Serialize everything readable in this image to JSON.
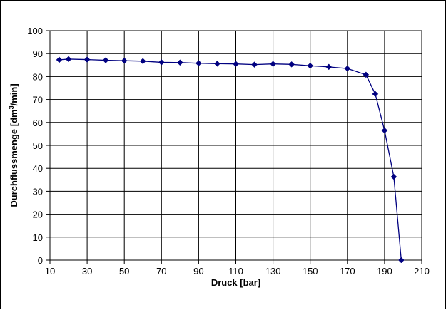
{
  "chart_data": {
    "type": "line",
    "title": "",
    "xlabel": "Druck [bar]",
    "ylabel_main": "Durchflussmenge [dm",
    "ylabel_sup": "3",
    "ylabel_end": "/min]",
    "xlim": [
      10,
      210
    ],
    "ylim": [
      0,
      100
    ],
    "x_ticks": [
      10,
      30,
      50,
      70,
      90,
      110,
      130,
      150,
      170,
      190,
      210
    ],
    "y_ticks": [
      0,
      10,
      20,
      30,
      40,
      50,
      60,
      70,
      80,
      90,
      100
    ],
    "grid": true,
    "legend": "none",
    "series": [
      {
        "color": "#000080",
        "marker": "diamond",
        "x": [
          15,
          20,
          30,
          40,
          50,
          60,
          70,
          80,
          90,
          100,
          110,
          120,
          130,
          140,
          150,
          160,
          170,
          180,
          185,
          190,
          195,
          199
        ],
        "y": [
          87.3,
          87.6,
          87.4,
          87.1,
          86.9,
          86.7,
          86.2,
          86.1,
          85.8,
          85.6,
          85.5,
          85.2,
          85.5,
          85.3,
          84.7,
          84.2,
          83.5,
          80.8,
          72.4,
          56.5,
          36.3,
          0
        ]
      }
    ]
  }
}
